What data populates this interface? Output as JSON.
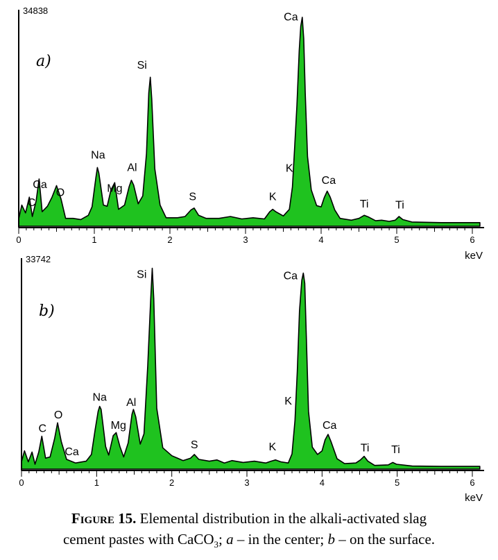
{
  "chart_data": [
    {
      "type": "area",
      "panel_label": "a)",
      "ymax_label": "34838",
      "xlabel": "keV",
      "xlim": [
        0,
        6.1
      ],
      "ylim": [
        0,
        34838
      ],
      "x_ticks": [
        "0",
        "1",
        "2",
        "3",
        "4",
        "5",
        "6"
      ],
      "fill_color": "#1fc21f",
      "spectrum": [
        [
          0,
          1200
        ],
        [
          0.04,
          3500
        ],
        [
          0.09,
          2200
        ],
        [
          0.14,
          4800
        ],
        [
          0.18,
          1600
        ],
        [
          0.23,
          4200
        ],
        [
          0.27,
          7800
        ],
        [
          0.31,
          2400
        ],
        [
          0.38,
          3300
        ],
        [
          0.44,
          4800
        ],
        [
          0.5,
          6700
        ],
        [
          0.56,
          4500
        ],
        [
          0.62,
          1300
        ],
        [
          0.72,
          1300
        ],
        [
          0.82,
          1100
        ],
        [
          0.92,
          1800
        ],
        [
          0.97,
          3200
        ],
        [
          1.02,
          8000
        ],
        [
          1.04,
          9700
        ],
        [
          1.06,
          8800
        ],
        [
          1.12,
          3500
        ],
        [
          1.17,
          3300
        ],
        [
          1.22,
          6000
        ],
        [
          1.27,
          7200
        ],
        [
          1.32,
          2800
        ],
        [
          1.4,
          3500
        ],
        [
          1.46,
          6500
        ],
        [
          1.49,
          7600
        ],
        [
          1.52,
          6800
        ],
        [
          1.58,
          3700
        ],
        [
          1.64,
          5000
        ],
        [
          1.69,
          12000
        ],
        [
          1.72,
          22000
        ],
        [
          1.74,
          24600
        ],
        [
          1.76,
          21000
        ],
        [
          1.8,
          9500
        ],
        [
          1.87,
          3500
        ],
        [
          1.95,
          1400
        ],
        [
          2.1,
          1400
        ],
        [
          2.2,
          1600
        ],
        [
          2.28,
          2700
        ],
        [
          2.32,
          3000
        ],
        [
          2.38,
          1800
        ],
        [
          2.48,
          1300
        ],
        [
          2.65,
          1300
        ],
        [
          2.8,
          1600
        ],
        [
          2.95,
          1200
        ],
        [
          3.1,
          1400
        ],
        [
          3.25,
          1200
        ],
        [
          3.32,
          2400
        ],
        [
          3.36,
          2800
        ],
        [
          3.4,
          2400
        ],
        [
          3.5,
          1700
        ],
        [
          3.58,
          2800
        ],
        [
          3.62,
          6500
        ],
        [
          3.65,
          13000
        ],
        [
          3.68,
          20000
        ],
        [
          3.71,
          29000
        ],
        [
          3.73,
          33000
        ],
        [
          3.75,
          34500
        ],
        [
          3.77,
          31000
        ],
        [
          3.79,
          22000
        ],
        [
          3.82,
          11500
        ],
        [
          3.87,
          6000
        ],
        [
          3.94,
          3400
        ],
        [
          4.0,
          3200
        ],
        [
          4.04,
          4700
        ],
        [
          4.08,
          5800
        ],
        [
          4.12,
          4800
        ],
        [
          4.18,
          2700
        ],
        [
          4.25,
          1300
        ],
        [
          4.4,
          1000
        ],
        [
          4.5,
          1300
        ],
        [
          4.57,
          1800
        ],
        [
          4.63,
          1500
        ],
        [
          4.72,
          900
        ],
        [
          4.8,
          1000
        ],
        [
          4.9,
          800
        ],
        [
          4.98,
          1000
        ],
        [
          5.03,
          1600
        ],
        [
          5.08,
          1100
        ],
        [
          5.2,
          700
        ],
        [
          5.6,
          600
        ],
        [
          6.1,
          600
        ]
      ],
      "annotations": [
        {
          "text": "C",
          "x": 0.17,
          "y": 3300
        },
        {
          "text": "Ca",
          "x": 0.28,
          "y": 6300
        },
        {
          "text": "O",
          "x": 0.55,
          "y": 5000
        },
        {
          "text": "Na",
          "x": 1.05,
          "y": 11200
        },
        {
          "text": "Mg",
          "x": 1.27,
          "y": 5700
        },
        {
          "text": "Al",
          "x": 1.5,
          "y": 9100
        },
        {
          "text": "Si",
          "x": 1.63,
          "y": 26000
        },
        {
          "text": "S",
          "x": 2.3,
          "y": 4300
        },
        {
          "text": "K",
          "x": 3.36,
          "y": 4300
        },
        {
          "text": "K",
          "x": 3.58,
          "y": 9000
        },
        {
          "text": "Ca",
          "x": 3.6,
          "y": 34000
        },
        {
          "text": "Ca",
          "x": 4.1,
          "y": 7000
        },
        {
          "text": "Ti",
          "x": 4.57,
          "y": 3100
        },
        {
          "text": "Ti",
          "x": 5.04,
          "y": 2900
        }
      ]
    },
    {
      "type": "area",
      "panel_label": "b)",
      "ymax_label": "33742",
      "xlabel": "keV",
      "xlim": [
        0,
        6.1
      ],
      "ylim": [
        0,
        33742
      ],
      "x_ticks": [
        "0",
        "1",
        "2",
        "3",
        "4",
        "5",
        "6"
      ],
      "fill_color": "#1fc21f",
      "spectrum": [
        [
          0,
          1200
        ],
        [
          0.04,
          3000
        ],
        [
          0.09,
          1200
        ],
        [
          0.14,
          2800
        ],
        [
          0.18,
          800
        ],
        [
          0.23,
          2800
        ],
        [
          0.27,
          5400
        ],
        [
          0.32,
          1800
        ],
        [
          0.38,
          2000
        ],
        [
          0.44,
          5000
        ],
        [
          0.48,
          7600
        ],
        [
          0.53,
          4500
        ],
        [
          0.6,
          1600
        ],
        [
          0.72,
          1000
        ],
        [
          0.86,
          1300
        ],
        [
          0.93,
          2400
        ],
        [
          0.98,
          6500
        ],
        [
          1.02,
          9500
        ],
        [
          1.04,
          10300
        ],
        [
          1.06,
          9800
        ],
        [
          1.12,
          3700
        ],
        [
          1.16,
          2300
        ],
        [
          1.22,
          5500
        ],
        [
          1.26,
          6000
        ],
        [
          1.31,
          3700
        ],
        [
          1.36,
          2000
        ],
        [
          1.42,
          4300
        ],
        [
          1.47,
          9000
        ],
        [
          1.49,
          9800
        ],
        [
          1.52,
          8600
        ],
        [
          1.58,
          4100
        ],
        [
          1.63,
          5800
        ],
        [
          1.68,
          17000
        ],
        [
          1.72,
          28000
        ],
        [
          1.74,
          33000
        ],
        [
          1.76,
          28000
        ],
        [
          1.8,
          10000
        ],
        [
          1.88,
          3500
        ],
        [
          2.0,
          2200
        ],
        [
          2.15,
          1400
        ],
        [
          2.25,
          1800
        ],
        [
          2.3,
          2400
        ],
        [
          2.36,
          1600
        ],
        [
          2.5,
          1300
        ],
        [
          2.6,
          1500
        ],
        [
          2.7,
          1000
        ],
        [
          2.8,
          1400
        ],
        [
          2.95,
          1100
        ],
        [
          3.1,
          1300
        ],
        [
          3.25,
          1000
        ],
        [
          3.32,
          1300
        ],
        [
          3.38,
          1500
        ],
        [
          3.45,
          1200
        ],
        [
          3.55,
          1000
        ],
        [
          3.6,
          2500
        ],
        [
          3.64,
          8000
        ],
        [
          3.67,
          16000
        ],
        [
          3.7,
          26000
        ],
        [
          3.73,
          31000
        ],
        [
          3.75,
          32200
        ],
        [
          3.77,
          30500
        ],
        [
          3.79,
          22000
        ],
        [
          3.82,
          9500
        ],
        [
          3.87,
          3600
        ],
        [
          3.94,
          2400
        ],
        [
          4.0,
          3000
        ],
        [
          4.04,
          4800
        ],
        [
          4.08,
          5700
        ],
        [
          4.12,
          4500
        ],
        [
          4.2,
          1700
        ],
        [
          4.3,
          900
        ],
        [
          4.45,
          1000
        ],
        [
          4.51,
          1500
        ],
        [
          4.56,
          2100
        ],
        [
          4.61,
          1300
        ],
        [
          4.7,
          600
        ],
        [
          4.88,
          700
        ],
        [
          4.94,
          1100
        ],
        [
          4.99,
          800
        ],
        [
          5.2,
          500
        ],
        [
          5.6,
          450
        ],
        [
          6.1,
          450
        ]
      ],
      "annotations": [
        {
          "text": "C",
          "x": 0.28,
          "y": 6100
        },
        {
          "text": "O",
          "x": 0.49,
          "y": 8300
        },
        {
          "text": "Ca",
          "x": 0.67,
          "y": 2300
        },
        {
          "text": "Na",
          "x": 1.04,
          "y": 11200
        },
        {
          "text": "Mg",
          "x": 1.29,
          "y": 6600
        },
        {
          "text": "Al",
          "x": 1.46,
          "y": 10400
        },
        {
          "text": "Si",
          "x": 1.6,
          "y": 31400
        },
        {
          "text": "S",
          "x": 2.3,
          "y": 3400
        },
        {
          "text": "K",
          "x": 3.34,
          "y": 3100
        },
        {
          "text": "K",
          "x": 3.55,
          "y": 10600
        },
        {
          "text": "Ca",
          "x": 3.58,
          "y": 31200
        },
        {
          "text": "Ca",
          "x": 4.1,
          "y": 6600
        },
        {
          "text": "Ti",
          "x": 4.57,
          "y": 2900
        },
        {
          "text": "Ti",
          "x": 4.98,
          "y": 2600
        }
      ]
    }
  ],
  "caption": {
    "figure_number": "Figure 15.",
    "text_1": " Elemental distribution in the alkali-activated slag",
    "text_2": "cement pastes with CaCO",
    "subscript": "3",
    "text_3": "; ",
    "var_a": "a",
    "text_4": " – in the center; ",
    "var_b": "b",
    "text_5": " – on the surface."
  }
}
